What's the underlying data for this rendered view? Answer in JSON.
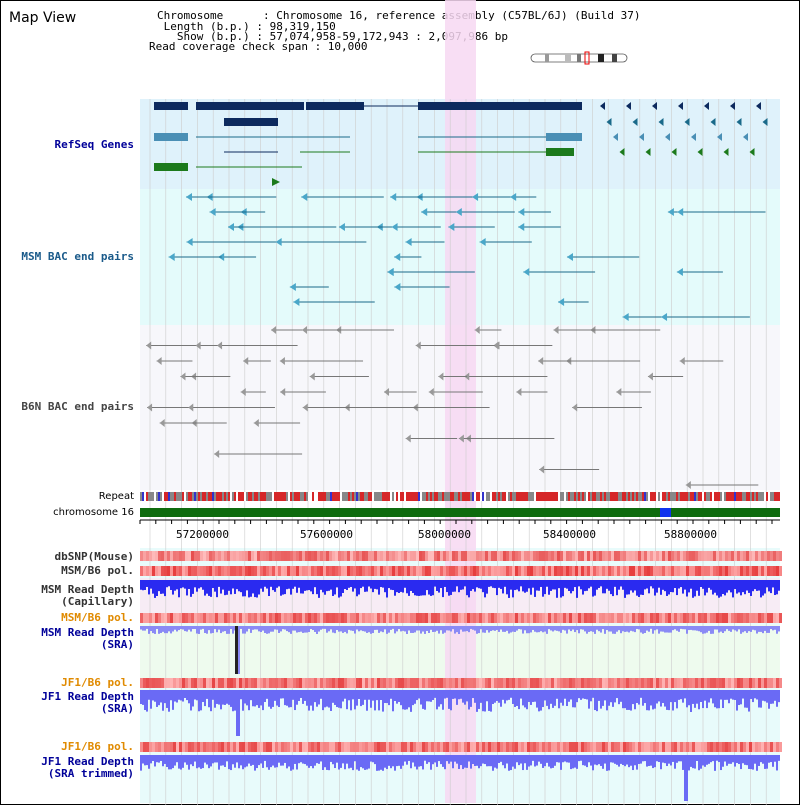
{
  "page": {
    "title": "Map View"
  },
  "info": {
    "chromosome_line": "Chromosome      : Chromosome 16, reference assembly (C57BL/6J) (Build 37)",
    "length_line": " Length (b.p.) : 98,319,150",
    "show_line": "   Show (b.p.) : 57,074,958-59,172,943 : 2,097,986 bp",
    "coverage_line": "Read coverage check span : 10,000"
  },
  "tracks": {
    "refseq": "RefSeq Genes",
    "msm_bac": "MSM BAC end pairs",
    "b6n_bac": "B6N BAC end pairs",
    "repeat": "Repeat",
    "chromosome": "chromosome 16",
    "dbsnp": "dbSNP(Mouse)",
    "msm_b6_pol": "MSM/B6 pol.",
    "msm_depth_cap": "MSM Read Depth\n(Capillary)",
    "msm_b6_pol2": "MSM/B6 pol.",
    "msm_depth_sra": "MSM Read Depth\n(SRA)",
    "jf1_b6_pol": "JF1/B6 pol.",
    "jf1_depth_sra": "JF1 Read Depth\n(SRA)",
    "jf1_b6_pol2": "JF1/B6 pol.",
    "jf1_depth_trim": "JF1 Read Depth\n(SRA trimmed)"
  },
  "axis": {
    "ticks": [
      "57200000",
      "57600000",
      "58000000",
      "58400000",
      "58800000"
    ]
  },
  "colors": {
    "refseq_bg": "#dff2fb",
    "msm_bg": "#e4fbfb",
    "b6n_bg": "#f7f7fb",
    "depth_bg": "#e8fbfb",
    "highlight": "#f7d8f2",
    "navy": "#0d2a5e",
    "teal": "#1a6a8a",
    "green": "#1c7a1c",
    "blue_label": "#000099",
    "orange_label": "#e08a00",
    "msm_label": "#1a5a8a"
  }
}
